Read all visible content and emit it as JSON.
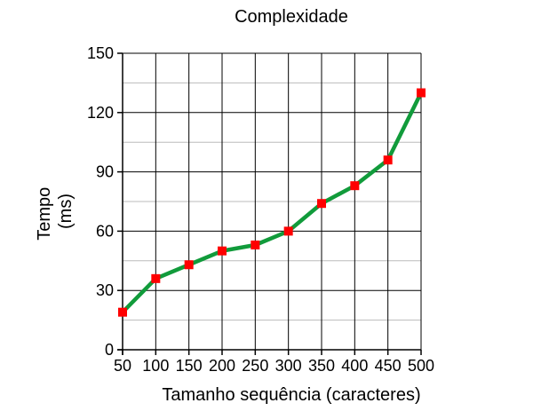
{
  "chart_data": {
    "type": "line",
    "title": "Complexidade",
    "xlabel": "Tamanho sequência (caracteres)",
    "ylabel_lines": [
      "Tempo",
      "(ms)"
    ],
    "x": [
      50,
      100,
      150,
      200,
      250,
      300,
      350,
      400,
      450,
      500
    ],
    "x_tick_labels": [
      "50",
      "100",
      "150",
      "200",
      "250",
      "300",
      "350",
      "400",
      "450",
      "500"
    ],
    "y_ticks": [
      0,
      30,
      60,
      90,
      120,
      150
    ],
    "y_tick_labels": [
      "0",
      "30",
      "60",
      "90",
      "120",
      "150"
    ],
    "xlim": [
      50,
      500
    ],
    "ylim": [
      0,
      150
    ],
    "grid": true,
    "series": [
      {
        "values": [
          19,
          36,
          43,
          50,
          53,
          60,
          74,
          83,
          96,
          130
        ],
        "line_color": "#119B3B",
        "marker": "square",
        "marker_color": "#FF0000"
      }
    ],
    "major_grid_color": "#000000",
    "minor_grid_color": "#BBBBBB"
  }
}
